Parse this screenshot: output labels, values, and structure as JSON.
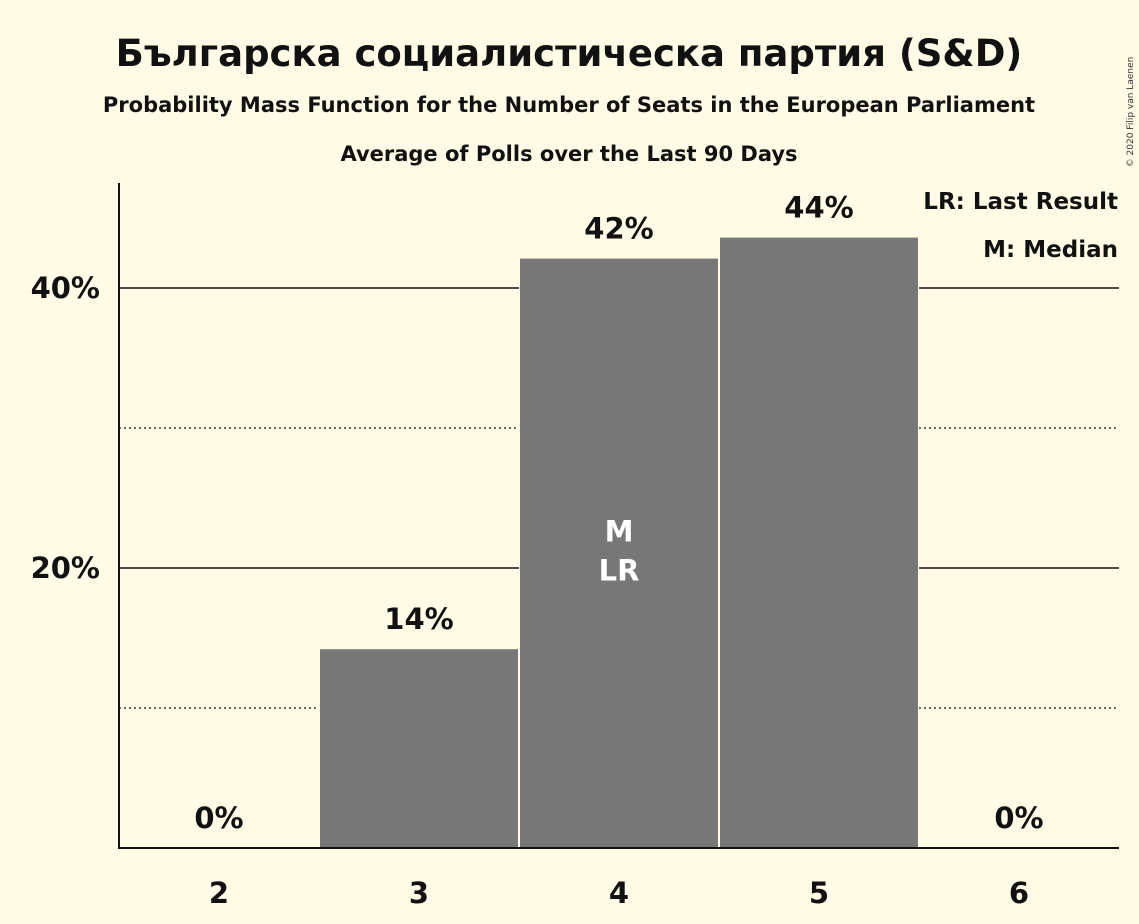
{
  "chart_data": {
    "type": "bar",
    "title": "Българска социалистическа партия (S&D)",
    "subtitle": "Probability Mass Function for the Number of Seats in the European Parliament",
    "subtitle2": "Average of Polls over the Last 90 Days",
    "categories": [
      "2",
      "3",
      "4",
      "5",
      "6"
    ],
    "values": [
      0,
      14.2,
      42.1,
      43.6,
      0
    ],
    "value_labels": [
      "0%",
      "14%",
      "42%",
      "44%",
      "0%"
    ],
    "ylim": [
      0,
      47.5
    ],
    "yticks": [
      {
        "value": 20,
        "label": "20%"
      },
      {
        "value": 40,
        "label": "40%"
      }
    ],
    "minor_gridlines": [
      10,
      30
    ],
    "bar_color": "#777777",
    "inbar_annotations": [
      {
        "category": "4",
        "lines": [
          "M",
          "LR"
        ]
      }
    ],
    "legend": {
      "placement": "top-right",
      "items": [
        "LR: Last Result",
        "M: Median"
      ]
    },
    "copyright": "© 2020 Filip van Laenen"
  }
}
